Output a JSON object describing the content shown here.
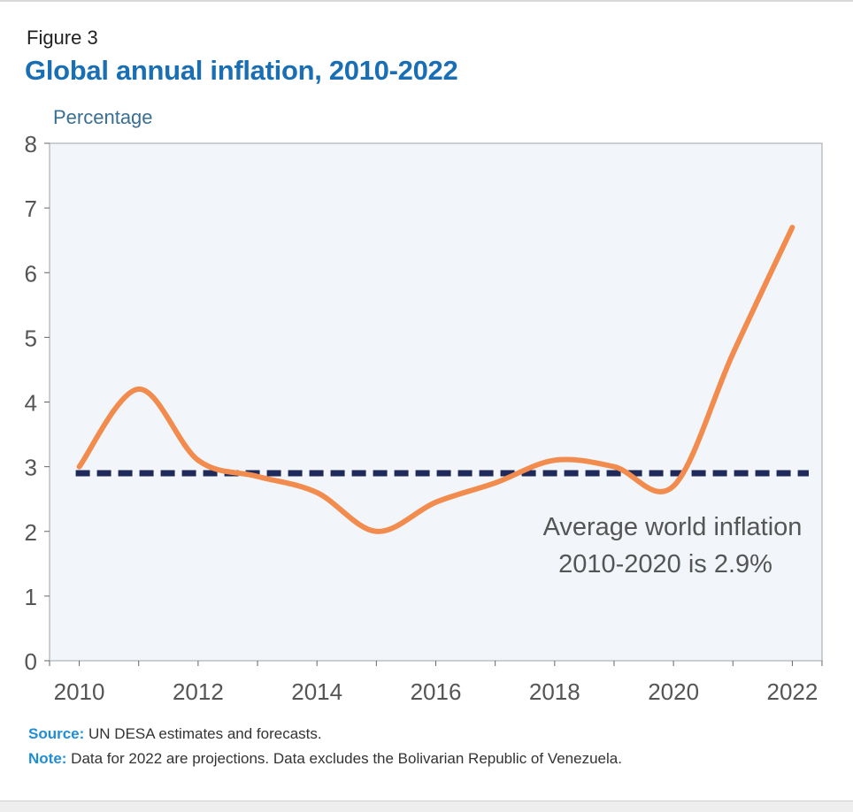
{
  "figure_label": "Figure 3",
  "chart_data": {
    "type": "line",
    "title": "Global annual inflation, 2010-2022",
    "xlabel": "",
    "ylabel": "Percentage",
    "x": [
      2010,
      2011,
      2012,
      2013,
      2014,
      2015,
      2016,
      2017,
      2018,
      2019,
      2020,
      2021,
      2022
    ],
    "series": [
      {
        "values": [
          3.0,
          4.2,
          3.1,
          2.85,
          2.6,
          2.0,
          2.45,
          2.75,
          3.1,
          3.0,
          2.7,
          4.75,
          6.7
        ]
      }
    ],
    "reference_line": {
      "value": 2.9,
      "label_line1": "Average world inflation",
      "label_line2": "2010-2020 is 2.9%"
    },
    "xlim": [
      2009.5,
      2022.5
    ],
    "ylim": [
      0,
      8
    ],
    "y_ticks": [
      0,
      1,
      2,
      3,
      4,
      5,
      6,
      7,
      8
    ],
    "x_ticks": [
      2010,
      2012,
      2014,
      2016,
      2018,
      2020,
      2022
    ],
    "grid": false,
    "colors": {
      "line": "#f28c4e",
      "reference": "#1f2a5a",
      "plot_bg": "#f2f6fa",
      "title": "#1a6fb4"
    }
  },
  "footnotes": {
    "source_key": "Source:",
    "source_text": " UN DESA estimates and forecasts.",
    "note_key": "Note:",
    "note_text": " Data for 2022 are projections. Data excludes the Bolivarian Republic of Venezuela."
  }
}
